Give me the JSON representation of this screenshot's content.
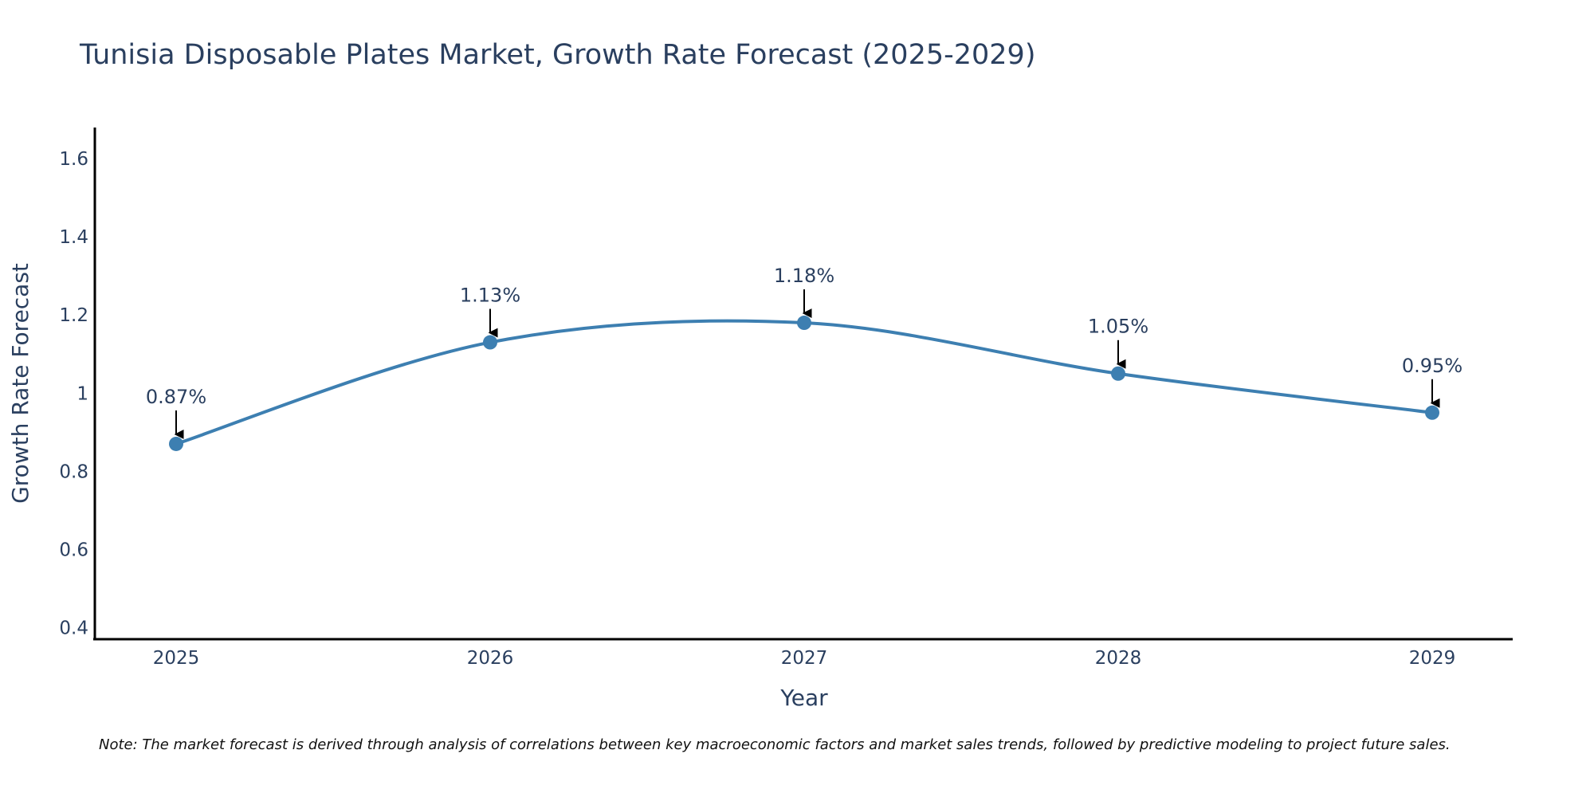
{
  "chart_data": {
    "type": "line",
    "title": "Tunisia Disposable Plates Market, Growth Rate Forecast (2025-2029)",
    "xlabel": "Year",
    "ylabel": "Growth Rate Forecast",
    "categories": [
      "2025",
      "2026",
      "2027",
      "2028",
      "2029"
    ],
    "series": [
      {
        "name": "Growth Rate Forecast",
        "values": [
          0.87,
          1.13,
          1.18,
          1.05,
          0.95
        ],
        "labels": [
          "0.87%",
          "1.13%",
          "1.18%",
          "1.05%",
          "0.95%"
        ]
      }
    ],
    "ylim": [
      0.37,
      1.68
    ],
    "yticks": [
      0.4,
      0.6,
      0.8,
      1,
      1.2,
      1.4,
      1.6
    ],
    "ytick_labels": [
      "0.4",
      "0.6",
      "0.8",
      "1",
      "1.2",
      "1.4",
      "1.6"
    ],
    "grid": false,
    "line_shape": "spline",
    "colors": {
      "line": "#3d7fb1",
      "marker": "#3d7fb1",
      "axis": "#000000",
      "text": "#2a3f5f",
      "arrow": "#000000"
    },
    "note": "Note: The market forecast is derived through analysis of correlations between key macroeconomic factors and market sales trends, followed by predictive modeling to project future sales."
  }
}
